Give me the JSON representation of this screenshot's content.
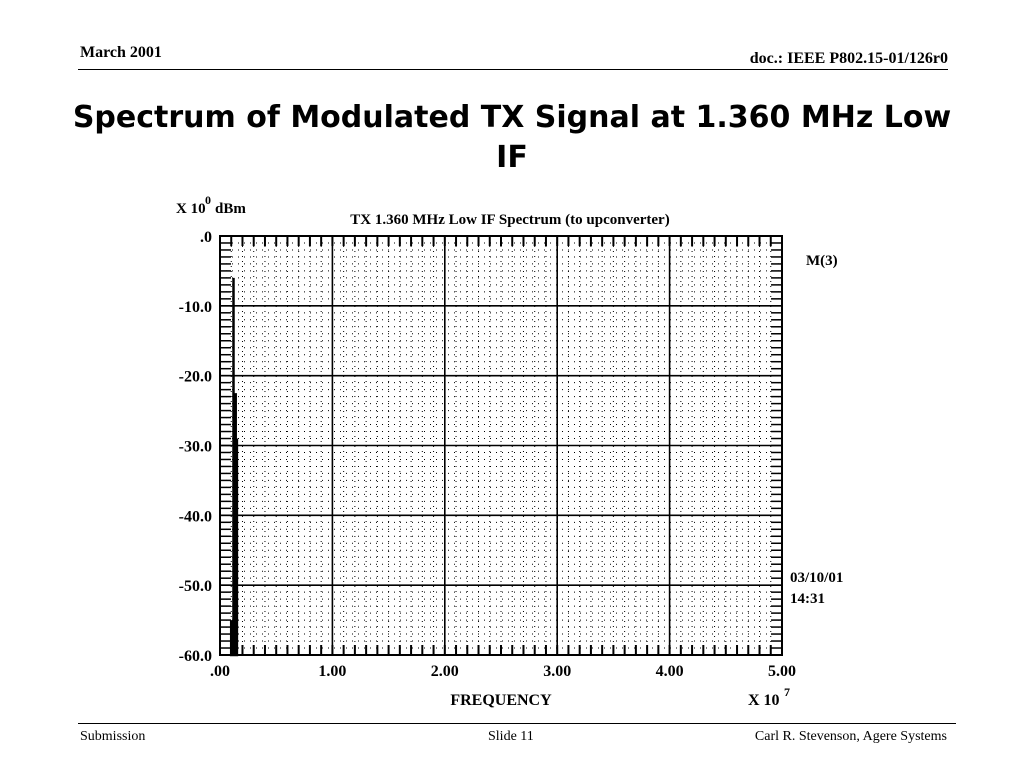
{
  "header": {
    "date": "March 2001",
    "doc_id": "doc.: IEEE P802.15-01/126r0"
  },
  "slide_title": "Spectrum of Modulated TX Signal at 1.360 MHz Low IF",
  "footer": {
    "left": "Submission",
    "center": "Slide 11",
    "right": "Carl R. Stevenson, Agere Systems"
  },
  "chart_data": {
    "type": "line",
    "title": "TX 1.360 MHz Low IF Spectrum (to upconverter)",
    "xlabel": "FREQUENCY",
    "ylabel": "dBm",
    "x_multiplier": {
      "base": "X 10",
      "exponent": "7"
    },
    "y_multiplier": {
      "base": "X 10",
      "exponent": "0"
    },
    "xlim": [
      0,
      5.0
    ],
    "ylim": [
      -60.0,
      0.0
    ],
    "x_tick_values": [
      0,
      1,
      2,
      3,
      4,
      5
    ],
    "x_tick_labels": [
      ".00",
      "1.00",
      "2.00",
      "3.00",
      "4.00",
      "5.00"
    ],
    "y_tick_values": [
      0,
      -10,
      -20,
      -30,
      -40,
      -50,
      -60
    ],
    "y_tick_labels": [
      ".0",
      "-10.0",
      "-20.0",
      "-30.0",
      "-40.0",
      "-50.0",
      "-60.0"
    ],
    "grid": true,
    "marker_label": "M(3)",
    "timestamp": {
      "date": "03/10/01",
      "time": "14:31"
    },
    "series": [
      {
        "x": [
          0.09,
          0.1,
          0.1,
          0.1,
          0.12,
          0.12,
          0.12,
          0.14,
          0.14,
          0.14,
          0.15,
          0.15,
          0.15
        ],
        "y": [
          -60.0,
          -60.0,
          -55.0,
          -60.0,
          -60.0,
          -6.0,
          -60.0,
          -60.0,
          -22.5,
          -60.0,
          -60.0,
          -29.0,
          -60.0
        ]
      }
    ]
  }
}
